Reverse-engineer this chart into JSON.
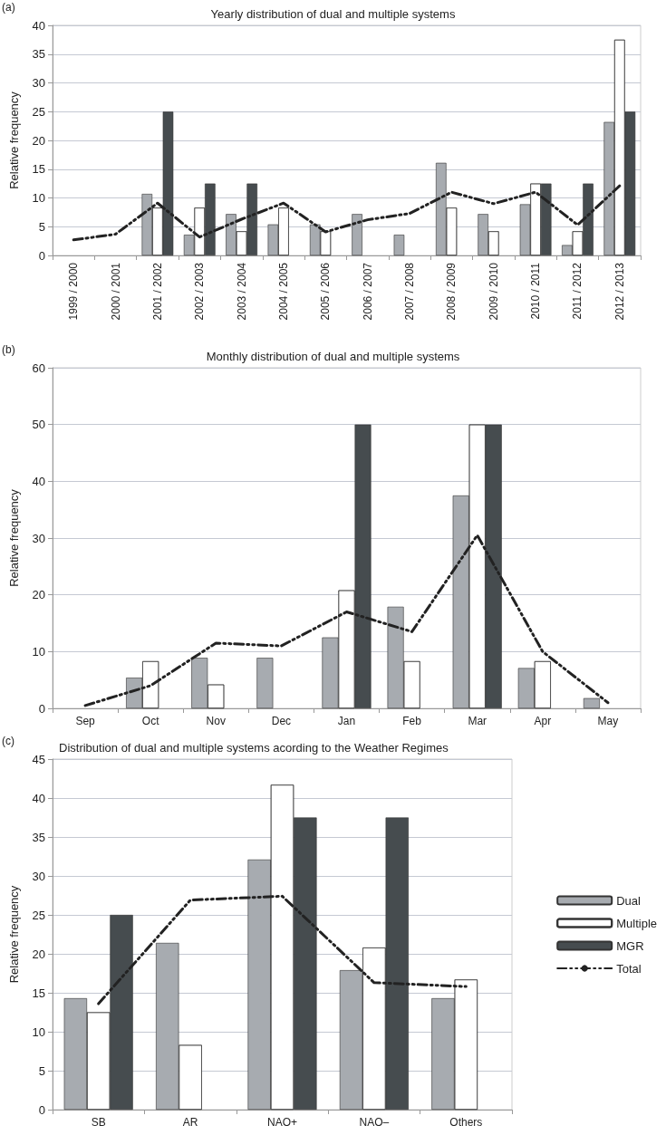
{
  "chart_data": [
    {
      "type": "bar",
      "title": "Yearly distribution of dual and multiple systems",
      "ylabel": "Relative frequency",
      "annotations": [
        "(a)"
      ],
      "categories": [
        "1999 / 2000",
        "2000 / 2001",
        "2001 / 2002",
        "2002 / 2003",
        "2003 / 2004",
        "2004 / 2005",
        "2005 / 2006",
        "2006 / 2007",
        "2007 / 2008",
        "2008 / 2009",
        "2009 / 2010",
        "2010 / 2011",
        "2011 / 2012",
        "2012 / 2013"
      ],
      "series": [
        {
          "color": "#a7abb0",
          "values": [
            null,
            null,
            10.7,
            3.6,
            7.2,
            5.4,
            5.4,
            7.2,
            3.6,
            16.1,
            7.2,
            8.9,
            1.8,
            23.2
          ]
        },
        {
          "color": "#ffffff",
          "values": [
            null,
            null,
            8.3,
            8.3,
            4.2,
            8.3,
            4.2,
            null,
            null,
            8.3,
            4.2,
            12.5,
            4.2,
            37.5
          ]
        },
        {
          "color": "#464c4f",
          "values": [
            null,
            null,
            25,
            12.5,
            12.5,
            null,
            null,
            null,
            null,
            null,
            null,
            12.5,
            12.5,
            25
          ]
        },
        {
          "type": "line",
          "color": "#222222",
          "line_style": "dashed",
          "values": [
            2.7,
            3.7,
            9.1,
            3.2,
            6.3,
            9.1,
            4.1,
            6.2,
            7.3,
            11.0,
            9.0,
            11.0,
            5.3,
            12.1
          ]
        }
      ],
      "ylim": [
        0,
        40
      ],
      "yticks": [
        0,
        5,
        10,
        15,
        20,
        25,
        30,
        35,
        40
      ],
      "grid": "y",
      "marker": "none"
    },
    {
      "type": "bar",
      "title": "Monthly distribution of dual and multiple systems",
      "ylabel": "Relative frequency",
      "annotations": [
        "(b)"
      ],
      "categories": [
        "Sep",
        "Oct",
        "Nov",
        "Dec",
        "Jan",
        "Feb",
        "Mar",
        "Apr",
        "May"
      ],
      "series": [
        {
          "color": "#a7abb0",
          "values": [
            null,
            5.4,
            8.9,
            8.9,
            12.5,
            17.9,
            37.5,
            7.1,
            1.8
          ]
        },
        {
          "color": "#ffffff",
          "values": [
            null,
            8.3,
            4.2,
            null,
            20.8,
            8.3,
            50,
            8.3,
            null
          ]
        },
        {
          "color": "#464c4f",
          "values": [
            null,
            null,
            null,
            null,
            50,
            null,
            50,
            null,
            null
          ]
        },
        {
          "type": "line",
          "color": "#222222",
          "line_style": "dashed",
          "values": [
            0.5,
            4,
            11.5,
            11,
            17,
            13.5,
            30.5,
            10,
            1
          ]
        }
      ],
      "ylim": [
        0,
        60
      ],
      "yticks": [
        0,
        10,
        20,
        30,
        40,
        50,
        60
      ],
      "grid": "y",
      "marker": "none"
    },
    {
      "type": "bar",
      "title": "Distribution of dual and multiple systems acording to the Weather Regimes",
      "ylabel": "Relative frequency",
      "annotations": [
        "(c)"
      ],
      "categories": [
        "SB",
        "AR",
        "NAO+",
        "NAO–",
        "Others"
      ],
      "series": [
        {
          "name": "Dual",
          "color": "#a7abb0",
          "values": [
            14.3,
            21.4,
            32.1,
            17.9,
            14.3
          ]
        },
        {
          "name": "Multiple",
          "color": "#ffffff",
          "values": [
            12.5,
            8.3,
            41.7,
            20.8,
            16.7
          ]
        },
        {
          "name": "MGR",
          "color": "#464c4f",
          "values": [
            25,
            null,
            37.5,
            37.5,
            null
          ]
        },
        {
          "name": "Total",
          "type": "line",
          "color": "#222222",
          "line_style": "dashed",
          "values": [
            13.6,
            26.9,
            27.4,
            16.3,
            15.8
          ]
        }
      ],
      "ylim": [
        0,
        45
      ],
      "yticks": [
        0,
        5,
        10,
        15,
        20,
        25,
        30,
        35,
        40,
        45
      ],
      "grid": "y",
      "legend": "right",
      "marker": "none"
    }
  ]
}
